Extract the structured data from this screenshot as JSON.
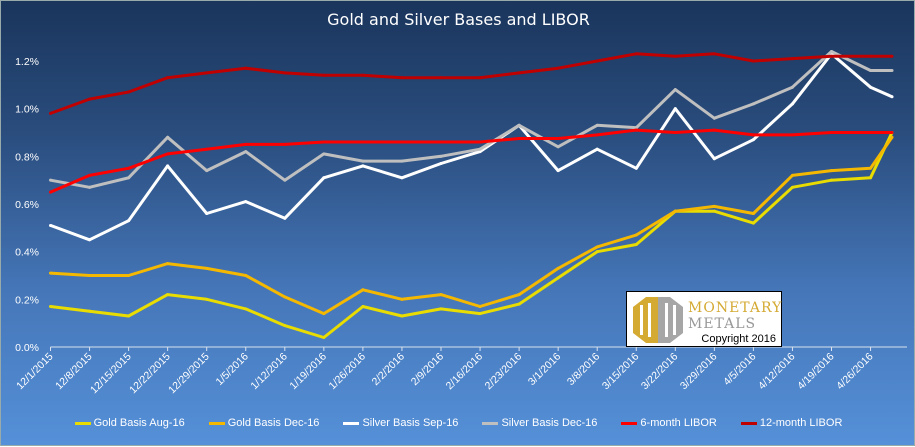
{
  "chart_data": {
    "type": "line",
    "title": "Gold and Silver Bases and LIBOR",
    "xlabel": "",
    "ylabel": "",
    "ylim": [
      0,
      1.2
    ],
    "yticks": [
      "0.0%",
      "0.2%",
      "0.4%",
      "0.6%",
      "0.8%",
      "1.0%",
      "1.2%"
    ],
    "categories": [
      "12/1/2015",
      "12/8/2015",
      "12/15/2015",
      "12/22/2015",
      "12/29/2015",
      "1/5/2016",
      "1/12/2016",
      "1/19/2016",
      "1/26/2016",
      "2/2/2016",
      "2/9/2016",
      "2/16/2016",
      "2/23/2016",
      "3/1/2016",
      "3/8/2016",
      "3/15/2016",
      "3/22/2016",
      "3/29/2016",
      "4/5/2016",
      "4/12/2016",
      "4/19/2016",
      "4/26/2016"
    ],
    "x": [
      0,
      1,
      2,
      3,
      4,
      5,
      6,
      7,
      8,
      9,
      10,
      11,
      12,
      13,
      14,
      15,
      16,
      17,
      18,
      19,
      20,
      21,
      21.55
    ],
    "grid": false,
    "legend_position": "bottom",
    "series": [
      {
        "name": "Gold Basis Aug-16",
        "color": "#e8dc00",
        "values": [
          0.17,
          0.15,
          0.13,
          0.22,
          0.2,
          0.16,
          0.09,
          0.04,
          0.17,
          0.13,
          0.16,
          0.14,
          0.18,
          0.29,
          0.4,
          0.43,
          0.57,
          0.57,
          0.52,
          0.67,
          0.7,
          0.71,
          0.9
        ]
      },
      {
        "name": "Gold Basis Dec-16",
        "color": "#f5b800",
        "values": [
          0.31,
          0.3,
          0.3,
          0.35,
          0.33,
          0.3,
          0.21,
          0.14,
          0.24,
          0.2,
          0.22,
          0.17,
          0.22,
          0.33,
          0.42,
          0.47,
          0.57,
          0.59,
          0.56,
          0.72,
          0.74,
          0.75,
          0.88
        ]
      },
      {
        "name": "Silver Basis Sep-16",
        "color": "#ffffff",
        "values": [
          0.51,
          0.45,
          0.53,
          0.76,
          0.56,
          0.61,
          0.54,
          0.71,
          0.76,
          0.71,
          0.77,
          0.82,
          0.93,
          0.74,
          0.83,
          0.75,
          1.0,
          0.79,
          0.87,
          1.02,
          1.23,
          1.09,
          1.05
        ]
      },
      {
        "name": "Silver Basis Dec-16",
        "color": "#bfbfbf",
        "values": [
          0.7,
          0.67,
          0.71,
          0.88,
          0.74,
          0.82,
          0.7,
          0.81,
          0.78,
          0.78,
          0.8,
          0.83,
          0.93,
          0.84,
          0.93,
          0.92,
          1.08,
          0.96,
          1.02,
          1.09,
          1.24,
          1.16,
          1.16
        ]
      },
      {
        "name": "6-month LIBOR",
        "color": "#ff0000",
        "values": [
          0.65,
          0.72,
          0.75,
          0.81,
          0.83,
          0.85,
          0.85,
          0.86,
          0.86,
          0.86,
          0.86,
          0.86,
          0.875,
          0.875,
          0.89,
          0.91,
          0.9,
          0.91,
          0.89,
          0.89,
          0.9,
          0.9,
          0.9
        ]
      },
      {
        "name": "12-month LIBOR",
        "color": "#c00000",
        "values": [
          0.98,
          1.04,
          1.07,
          1.13,
          1.15,
          1.17,
          1.15,
          1.14,
          1.14,
          1.13,
          1.13,
          1.13,
          1.15,
          1.17,
          1.2,
          1.23,
          1.22,
          1.23,
          1.2,
          1.21,
          1.22,
          1.22,
          1.22
        ]
      }
    ]
  },
  "logo": {
    "line1": "Monetary",
    "line2": "Metals",
    "copyright": "Copyright 2016"
  }
}
